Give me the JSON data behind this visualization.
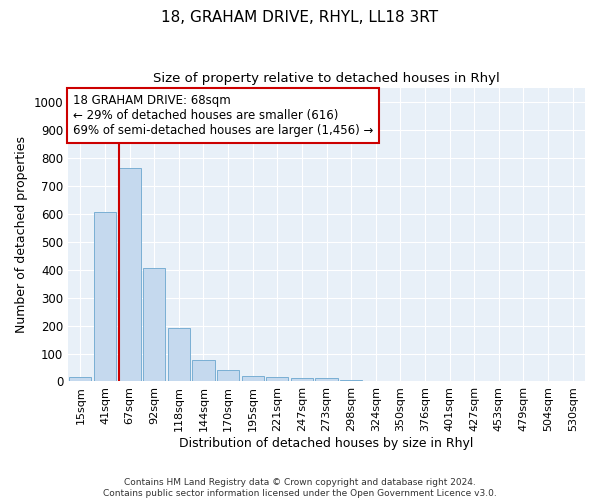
{
  "title": "18, GRAHAM DRIVE, RHYL, LL18 3RT",
  "subtitle": "Size of property relative to detached houses in Rhyl",
  "xlabel": "Distribution of detached houses by size in Rhyl",
  "ylabel": "Number of detached properties",
  "categories": [
    "15sqm",
    "41sqm",
    "67sqm",
    "92sqm",
    "118sqm",
    "144sqm",
    "170sqm",
    "195sqm",
    "221sqm",
    "247sqm",
    "273sqm",
    "298sqm",
    "324sqm",
    "350sqm",
    "376sqm",
    "401sqm",
    "427sqm",
    "453sqm",
    "479sqm",
    "504sqm",
    "530sqm"
  ],
  "values": [
    15,
    605,
    765,
    405,
    190,
    78,
    40,
    18,
    15,
    13,
    12,
    5,
    0,
    0,
    0,
    0,
    0,
    0,
    0,
    0,
    0
  ],
  "bar_color": "#c5d9ee",
  "bar_edge_color": "#7aafd4",
  "vline_x": 2.0,
  "vline_color": "#cc0000",
  "annotation_text": "18 GRAHAM DRIVE: 68sqm\n← 29% of detached houses are smaller (616)\n69% of semi-detached houses are larger (1,456) →",
  "annotation_box_color": "#cc0000",
  "ylim": [
    0,
    1050
  ],
  "yticks": [
    0,
    100,
    200,
    300,
    400,
    500,
    600,
    700,
    800,
    900,
    1000
  ],
  "bg_color": "#e8f0f8",
  "grid_color": "#ffffff",
  "footer": "Contains HM Land Registry data © Crown copyright and database right 2024.\nContains public sector information licensed under the Open Government Licence v3.0.",
  "title_fontsize": 11,
  "subtitle_fontsize": 9.5,
  "xlabel_fontsize": 9,
  "ylabel_fontsize": 9,
  "tick_fontsize": 8.5,
  "xtick_fontsize": 8,
  "annotation_fontsize": 8.5
}
